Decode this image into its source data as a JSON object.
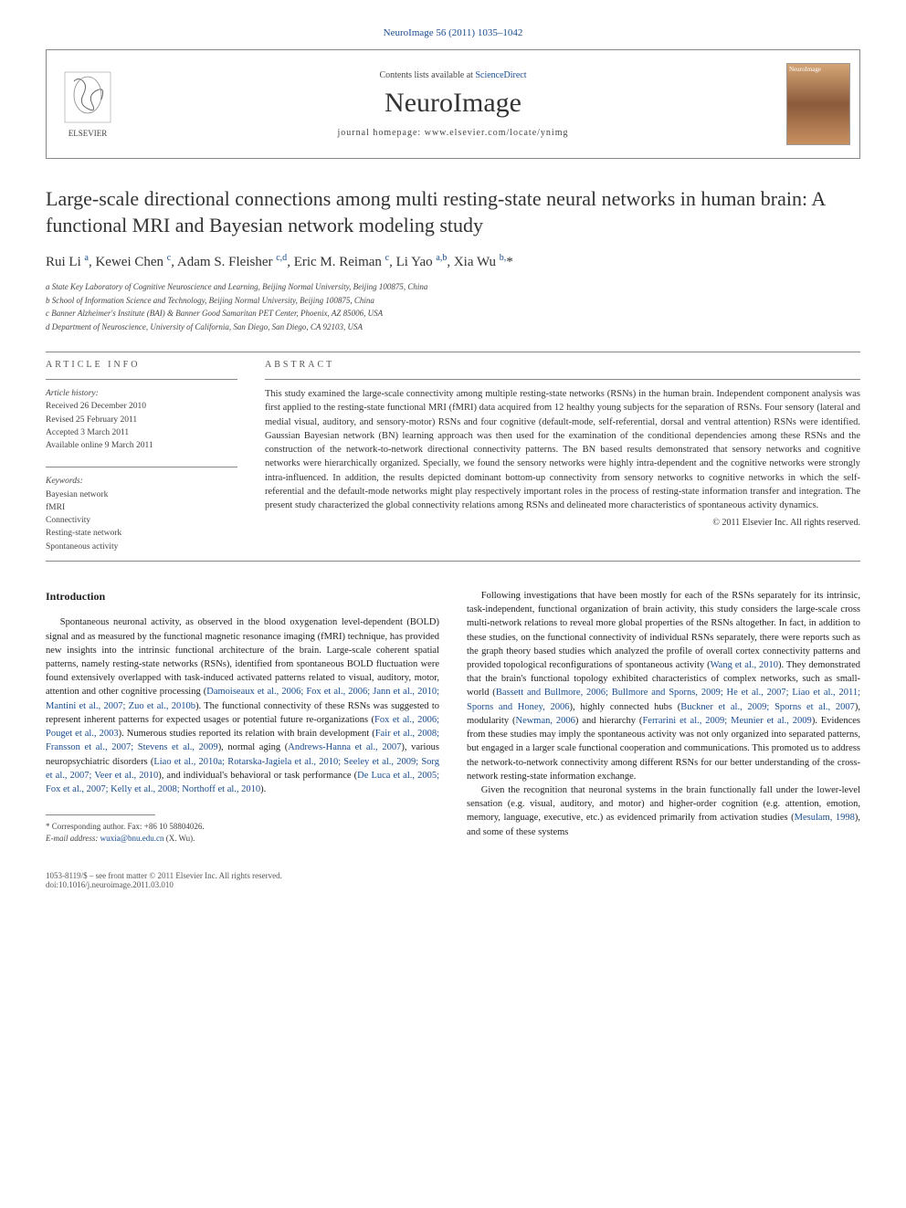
{
  "journal_ref": "NeuroImage 56 (2011) 1035–1042",
  "header": {
    "contents_prefix": "Contents lists available at ",
    "contents_link": "ScienceDirect",
    "journal_name": "NeuroImage",
    "homepage_prefix": "journal homepage: ",
    "homepage_url": "www.elsevier.com/locate/ynimg"
  },
  "title": "Large-scale directional connections among multi resting-state neural networks in human brain: A functional MRI and Bayesian network modeling study",
  "authors_html": "Rui Li <sup>a</sup>, Kewei Chen <sup>c</sup>, Adam S. Fleisher <sup>c,d</sup>, Eric M. Reiman <sup>c</sup>, Li Yao <sup>a,b</sup>, Xia Wu <sup>b,</sup>*",
  "affiliations": [
    "a State Key Laboratory of Cognitive Neuroscience and Learning, Beijing Normal University, Beijing 100875, China",
    "b School of Information Science and Technology, Beijing Normal University, Beijing 100875, China",
    "c Banner Alzheimer's Institute (BAI) & Banner Good Samaritan PET Center, Phoenix, AZ 85006, USA",
    "d Department of Neuroscience, University of California, San Diego, San Diego, CA 92103, USA"
  ],
  "article_info_label": "ARTICLE INFO",
  "abstract_label": "ABSTRACT",
  "history": {
    "label": "Article history:",
    "received": "Received 26 December 2010",
    "revised": "Revised 25 February 2011",
    "accepted": "Accepted 3 March 2011",
    "online": "Available online 9 March 2011"
  },
  "keywords": {
    "label": "Keywords:",
    "items": [
      "Bayesian network",
      "fMRI",
      "Connectivity",
      "Resting-state network",
      "Spontaneous activity"
    ]
  },
  "abstract": "This study examined the large-scale connectivity among multiple resting-state networks (RSNs) in the human brain. Independent component analysis was first applied to the resting-state functional MRI (fMRI) data acquired from 12 healthy young subjects for the separation of RSNs. Four sensory (lateral and medial visual, auditory, and sensory-motor) RSNs and four cognitive (default-mode, self-referential, dorsal and ventral attention) RSNs were identified. Gaussian Bayesian network (BN) learning approach was then used for the examination of the conditional dependencies among these RSNs and the construction of the network-to-network directional connectivity patterns. The BN based results demonstrated that sensory networks and cognitive networks were hierarchically organized. Specially, we found the sensory networks were highly intra-dependent and the cognitive networks were strongly intra-influenced. In addition, the results depicted dominant bottom-up connectivity from sensory networks to cognitive networks in which the self-referential and the default-mode networks might play respectively important roles in the process of resting-state information transfer and integration. The present study characterized the global connectivity relations among RSNs and delineated more characteristics of spontaneous activity dynamics.",
  "copyright": "© 2011 Elsevier Inc. All rights reserved.",
  "intro_heading": "Introduction",
  "intro_p1_pre": "Spontaneous neuronal activity, as observed in the blood oxygenation level-dependent (BOLD) signal and as measured by the functional magnetic resonance imaging (fMRI) technique, has provided new insights into the intrinsic functional architecture of the brain. Large-scale coherent spatial patterns, namely resting-state networks (RSNs), identified from spontaneous BOLD fluctuation were found extensively overlapped with task-induced activated patterns related to visual, auditory, motor, attention and other cognitive processing (",
  "intro_cite1": "Damoiseaux et al., 2006; Fox et al., 2006; Jann et al., 2010; Mantini et al., 2007; Zuo et al., 2010b",
  "intro_p1_mid1": "). The functional connectivity of these RSNs was suggested to represent inherent patterns for expected usages or potential future re-organizations (",
  "intro_cite2": "Fox et al., 2006; Pouget et al., 2003",
  "intro_p1_mid2": "). Numerous studies reported its relation with brain development (",
  "intro_cite3": "Fair et al., 2008; Fransson et al., 2007; Stevens et al., 2009",
  "intro_p1_mid3": "), normal aging (",
  "intro_cite4": "Andrews-Hanna et al., 2007",
  "intro_p1_mid4": "), various neuropsychiatric disorders (",
  "intro_cite5": "Liao et al., 2010a; Rotarska-Jagiela et al., 2010; Seeley et al., 2009; Sorg et al., 2007; Veer et al., 2010",
  "intro_p1_mid5": "), and individual's behavioral or task performance (",
  "intro_cite6": "De Luca et al., 2005; Fox et al., 2007; Kelly et al., 2008; Northoff et al., 2010",
  "intro_p1_end": ").",
  "col2_p1_pre": "Following investigations that have been mostly for each of the RSNs separately for its intrinsic, task-independent, functional organization of brain activity, this study considers the large-scale cross multi-network relations to reveal more global properties of the RSNs altogether. In fact, in addition to these studies, on the functional connectivity of individual RSNs separately, there were reports such as the graph theory based studies which analyzed the profile of overall cortex connectivity patterns and provided topological reconfigurations of spontaneous activity (",
  "col2_cite1": "Wang et al., 2010",
  "col2_p1_mid1": "). They demonstrated that the brain's functional topology exhibited characteristics of complex networks, such as small-world (",
  "col2_cite2": "Bassett and Bullmore, 2006; Bullmore and Sporns, 2009; He et al., 2007; Liao et al., 2011; Sporns and Honey, 2006",
  "col2_p1_mid2": "), highly connected hubs (",
  "col2_cite3": "Buckner et al., 2009; Sporns et al., 2007",
  "col2_p1_mid3": "), modularity (",
  "col2_cite4": "Newman, 2006",
  "col2_p1_mid4": ") and hierarchy (",
  "col2_cite5": "Ferrarini et al., 2009; Meunier et al., 2009",
  "col2_p1_end": "). Evidences from these studies may imply the spontaneous activity was not only organized into separated patterns, but engaged in a larger scale functional cooperation and communications. This promoted us to address the network-to-network connectivity among different RSNs for our better understanding of the cross-network resting-state information exchange.",
  "col2_p2_pre": "Given the recognition that neuronal systems in the brain functionally fall under the lower-level sensation (e.g. visual, auditory, and motor) and higher-order cognition (e.g. attention, emotion, memory, language, executive, etc.) as evidenced primarily from activation studies (",
  "col2_cite6": "Mesulam, 1998",
  "col2_p2_end": "), and some of these systems",
  "footnote": {
    "corr": "* Corresponding author. Fax: +86 10 58804026.",
    "email_lbl": "E-mail address:",
    "email": "wuxia@bnu.edu.cn",
    "email_who": "(X. Wu)."
  },
  "footer": {
    "left1": "1053-8119/$ – see front matter © 2011 Elsevier Inc. All rights reserved.",
    "left2": "doi:10.1016/j.neuroimage.2011.03.010"
  },
  "colors": {
    "link": "#1a4d8f",
    "text": "#222222",
    "rule": "#888888"
  }
}
